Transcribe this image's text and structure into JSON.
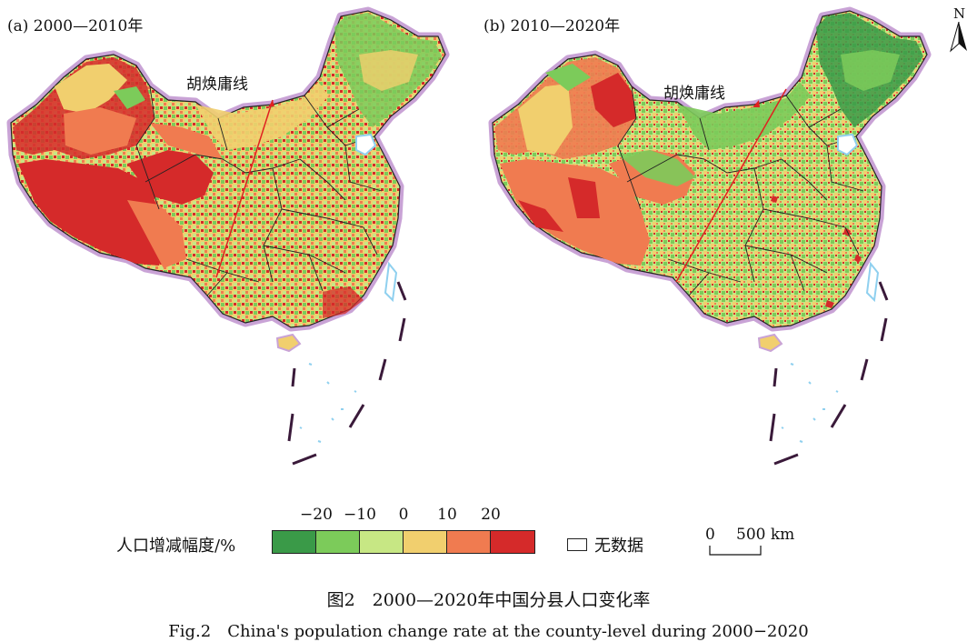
{
  "panels": [
    {
      "id": "a",
      "title": "(a) 2000—2010年",
      "hu_line_label": "胡焕庸线"
    },
    {
      "id": "b",
      "title": "(b) 2010—2020年",
      "hu_line_label": "胡焕庸线"
    }
  ],
  "north_arrow": {
    "label": "N"
  },
  "legend": {
    "title": "人口增减幅度/%",
    "ticks": [
      "−20",
      "−10",
      "0",
      "10",
      "20"
    ],
    "classes": [
      {
        "range": "< -20",
        "color": "#3a9a48"
      },
      {
        "range": "-20 ~ -10",
        "color": "#7ccb5a"
      },
      {
        "range": "-10 ~ 0",
        "color": "#c7e784"
      },
      {
        "range": "0 ~ 10",
        "color": "#f1cf6e"
      },
      {
        "range": "10 ~ 20",
        "color": "#f07b50"
      },
      {
        "range": "> 20",
        "color": "#d52a2a"
      }
    ],
    "nodata_label": "无数据"
  },
  "scale_bar": {
    "zero": "0",
    "label": "500 km"
  },
  "caption": {
    "cn": "图2　2000—2020年中国分县人口变化率",
    "en": "Fig.2　China's population change rate at the county-level during 2000−2020"
  },
  "colors": {
    "border_halo": "#c9a3d6",
    "hu_line": "#e02020",
    "water": "#8fd0ef",
    "province_line": "#222222"
  }
}
